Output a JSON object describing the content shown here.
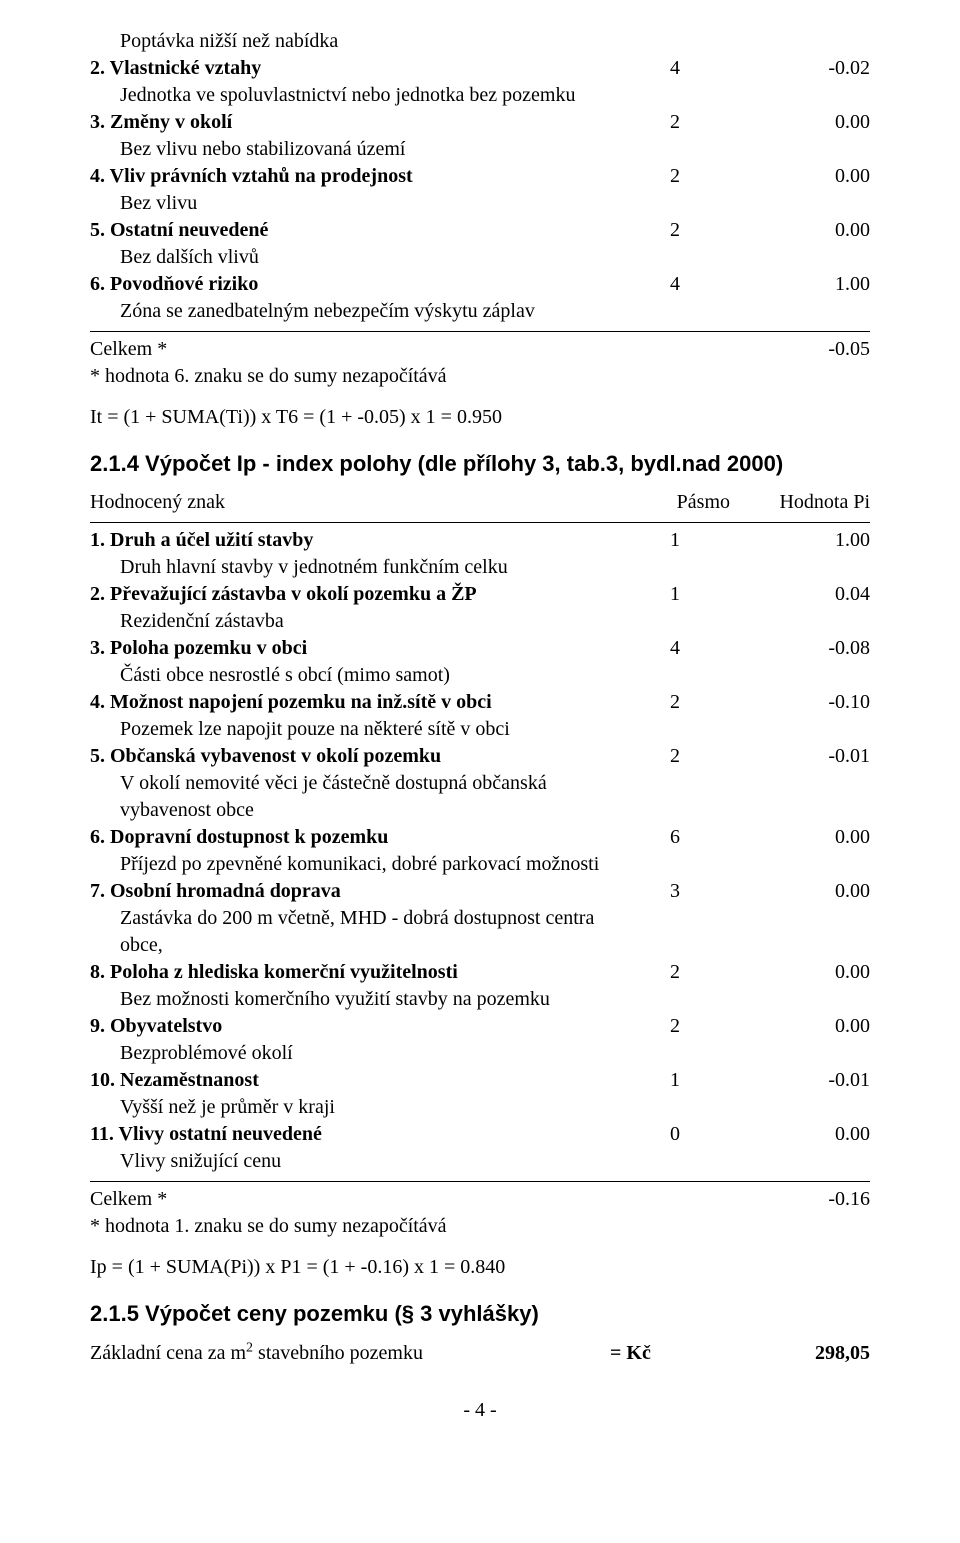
{
  "section1": {
    "rows": [
      {
        "label": "Poptávka nižší než nabídka",
        "pasmo": "",
        "hodnota": "",
        "bold": false,
        "indent": true
      },
      {
        "label": "2. Vlastnické vztahy",
        "pasmo": "4",
        "hodnota": "-0.02",
        "bold": true,
        "indent": false
      },
      {
        "label": "Jednotka ve spoluvlastnictví nebo jednotka bez pozemku",
        "pasmo": "",
        "hodnota": "",
        "bold": false,
        "indent": true
      },
      {
        "label": "3. Změny v okolí",
        "pasmo": "2",
        "hodnota": "0.00",
        "bold": true,
        "indent": false
      },
      {
        "label": "Bez vlivu nebo stabilizovaná území",
        "pasmo": "",
        "hodnota": "",
        "bold": false,
        "indent": true
      },
      {
        "label": "4. Vliv právních vztahů na prodejnost",
        "pasmo": "2",
        "hodnota": "0.00",
        "bold": true,
        "indent": false
      },
      {
        "label": "Bez vlivu",
        "pasmo": "",
        "hodnota": "",
        "bold": false,
        "indent": true
      },
      {
        "label": "5. Ostatní neuvedené",
        "pasmo": "2",
        "hodnota": "0.00",
        "bold": true,
        "indent": false
      },
      {
        "label": "Bez dalších vlivů",
        "pasmo": "",
        "hodnota": "",
        "bold": false,
        "indent": true
      },
      {
        "label": "6. Povodňové riziko",
        "pasmo": "4",
        "hodnota": "1.00",
        "bold": true,
        "indent": false
      },
      {
        "label": "Zóna se zanedbatelným nebezpečím výskytu záplav",
        "pasmo": "",
        "hodnota": "",
        "bold": false,
        "indent": true
      }
    ],
    "total_label": "Celkem *",
    "total_value": "-0.05",
    "footnote": "* hodnota 6. znaku se do sumy nezapočítává",
    "formula": "It = (1 + SUMA(Ti)) x T6 = (1 + -0.05) x 1 = 0.950"
  },
  "section2": {
    "heading": "2.1.4 Výpočet Ip - index polohy (dle přílohy 3, tab.3, bydl.nad 2000)",
    "header": {
      "c1": "Hodnocený znak",
      "c2": "Pásmo",
      "c3": "Hodnota Pi"
    },
    "rows": [
      {
        "label": "1. Druh a účel užití stavby",
        "pasmo": "1",
        "hodnota": "1.00",
        "bold": true
      },
      {
        "label": "Druh hlavní stavby v jednotném funkčním celku",
        "bold": false,
        "indent": true
      },
      {
        "label": "2. Převažující zástavba v okolí pozemku a ŽP",
        "pasmo": "1",
        "hodnota": "0.04",
        "bold": true
      },
      {
        "label": "Rezidenční zástavba",
        "bold": false,
        "indent": true
      },
      {
        "label": "3. Poloha pozemku v obci",
        "pasmo": "4",
        "hodnota": "-0.08",
        "bold": true
      },
      {
        "label": "Části obce nesrostlé s obcí (mimo samot)",
        "bold": false,
        "indent": true
      },
      {
        "label": "4. Možnost napojení pozemku na inž.sítě v obci",
        "pasmo": "2",
        "hodnota": "-0.10",
        "bold": true
      },
      {
        "label": "Pozemek lze napojit pouze na některé sítě v obci",
        "bold": false,
        "indent": true
      },
      {
        "label": "5. Občanská vybavenost v okolí pozemku",
        "pasmo": "2",
        "hodnota": "-0.01",
        "bold": true
      },
      {
        "label": "V okolí nemovité věci je částečně dostupná občanská vybavenost obce",
        "bold": false,
        "indent": true
      },
      {
        "label": "6. Dopravní dostupnost k pozemku",
        "pasmo": "6",
        "hodnota": "0.00",
        "bold": true
      },
      {
        "label": "Příjezd po zpevněné komunikaci, dobré parkovací možnosti",
        "bold": false,
        "indent": true
      },
      {
        "label": "7. Osobní hromadná doprava",
        "pasmo": "3",
        "hodnota": "0.00",
        "bold": true
      },
      {
        "label": "Zastávka do 200 m včetně, MHD - dobrá dostupnost centra obce,",
        "bold": false,
        "indent": true
      },
      {
        "label": "8. Poloha z hlediska komerční využitelnosti",
        "pasmo": "2",
        "hodnota": "0.00",
        "bold": true
      },
      {
        "label": "Bez možnosti komerčního využití stavby na pozemku",
        "bold": false,
        "indent": true
      },
      {
        "label": "9. Obyvatelstvo",
        "pasmo": "2",
        "hodnota": "0.00",
        "bold": true
      },
      {
        "label": "Bezproblémové okolí",
        "bold": false,
        "indent": true
      },
      {
        "label": "10. Nezaměstnanost",
        "pasmo": "1",
        "hodnota": "-0.01",
        "bold": true
      },
      {
        "label": "Vyšší než je průměr v kraji",
        "bold": false,
        "indent": true
      },
      {
        "label": "11. Vlivy ostatní neuvedené",
        "pasmo": "0",
        "hodnota": "0.00",
        "bold": true
      },
      {
        "label": "Vlivy snižující cenu",
        "bold": false,
        "indent": true
      }
    ],
    "total_label": "Celkem *",
    "total_value": "-0.16",
    "footnote": "* hodnota 1. znaku se do sumy nezapočítává",
    "formula": "Ip = (1 + SUMA(Pi)) x P1 = (1 + -0.16) x 1 = 0.840"
  },
  "section3": {
    "heading": "2.1.5 Výpočet ceny pozemku (§ 3 vyhlášky)",
    "row_label_pre": "Základní cena za m",
    "row_label_sup": "2",
    "row_label_post": " stavebního pozemku",
    "eq": "= Kč",
    "value": "298,05"
  },
  "page_number": "- 4 -"
}
